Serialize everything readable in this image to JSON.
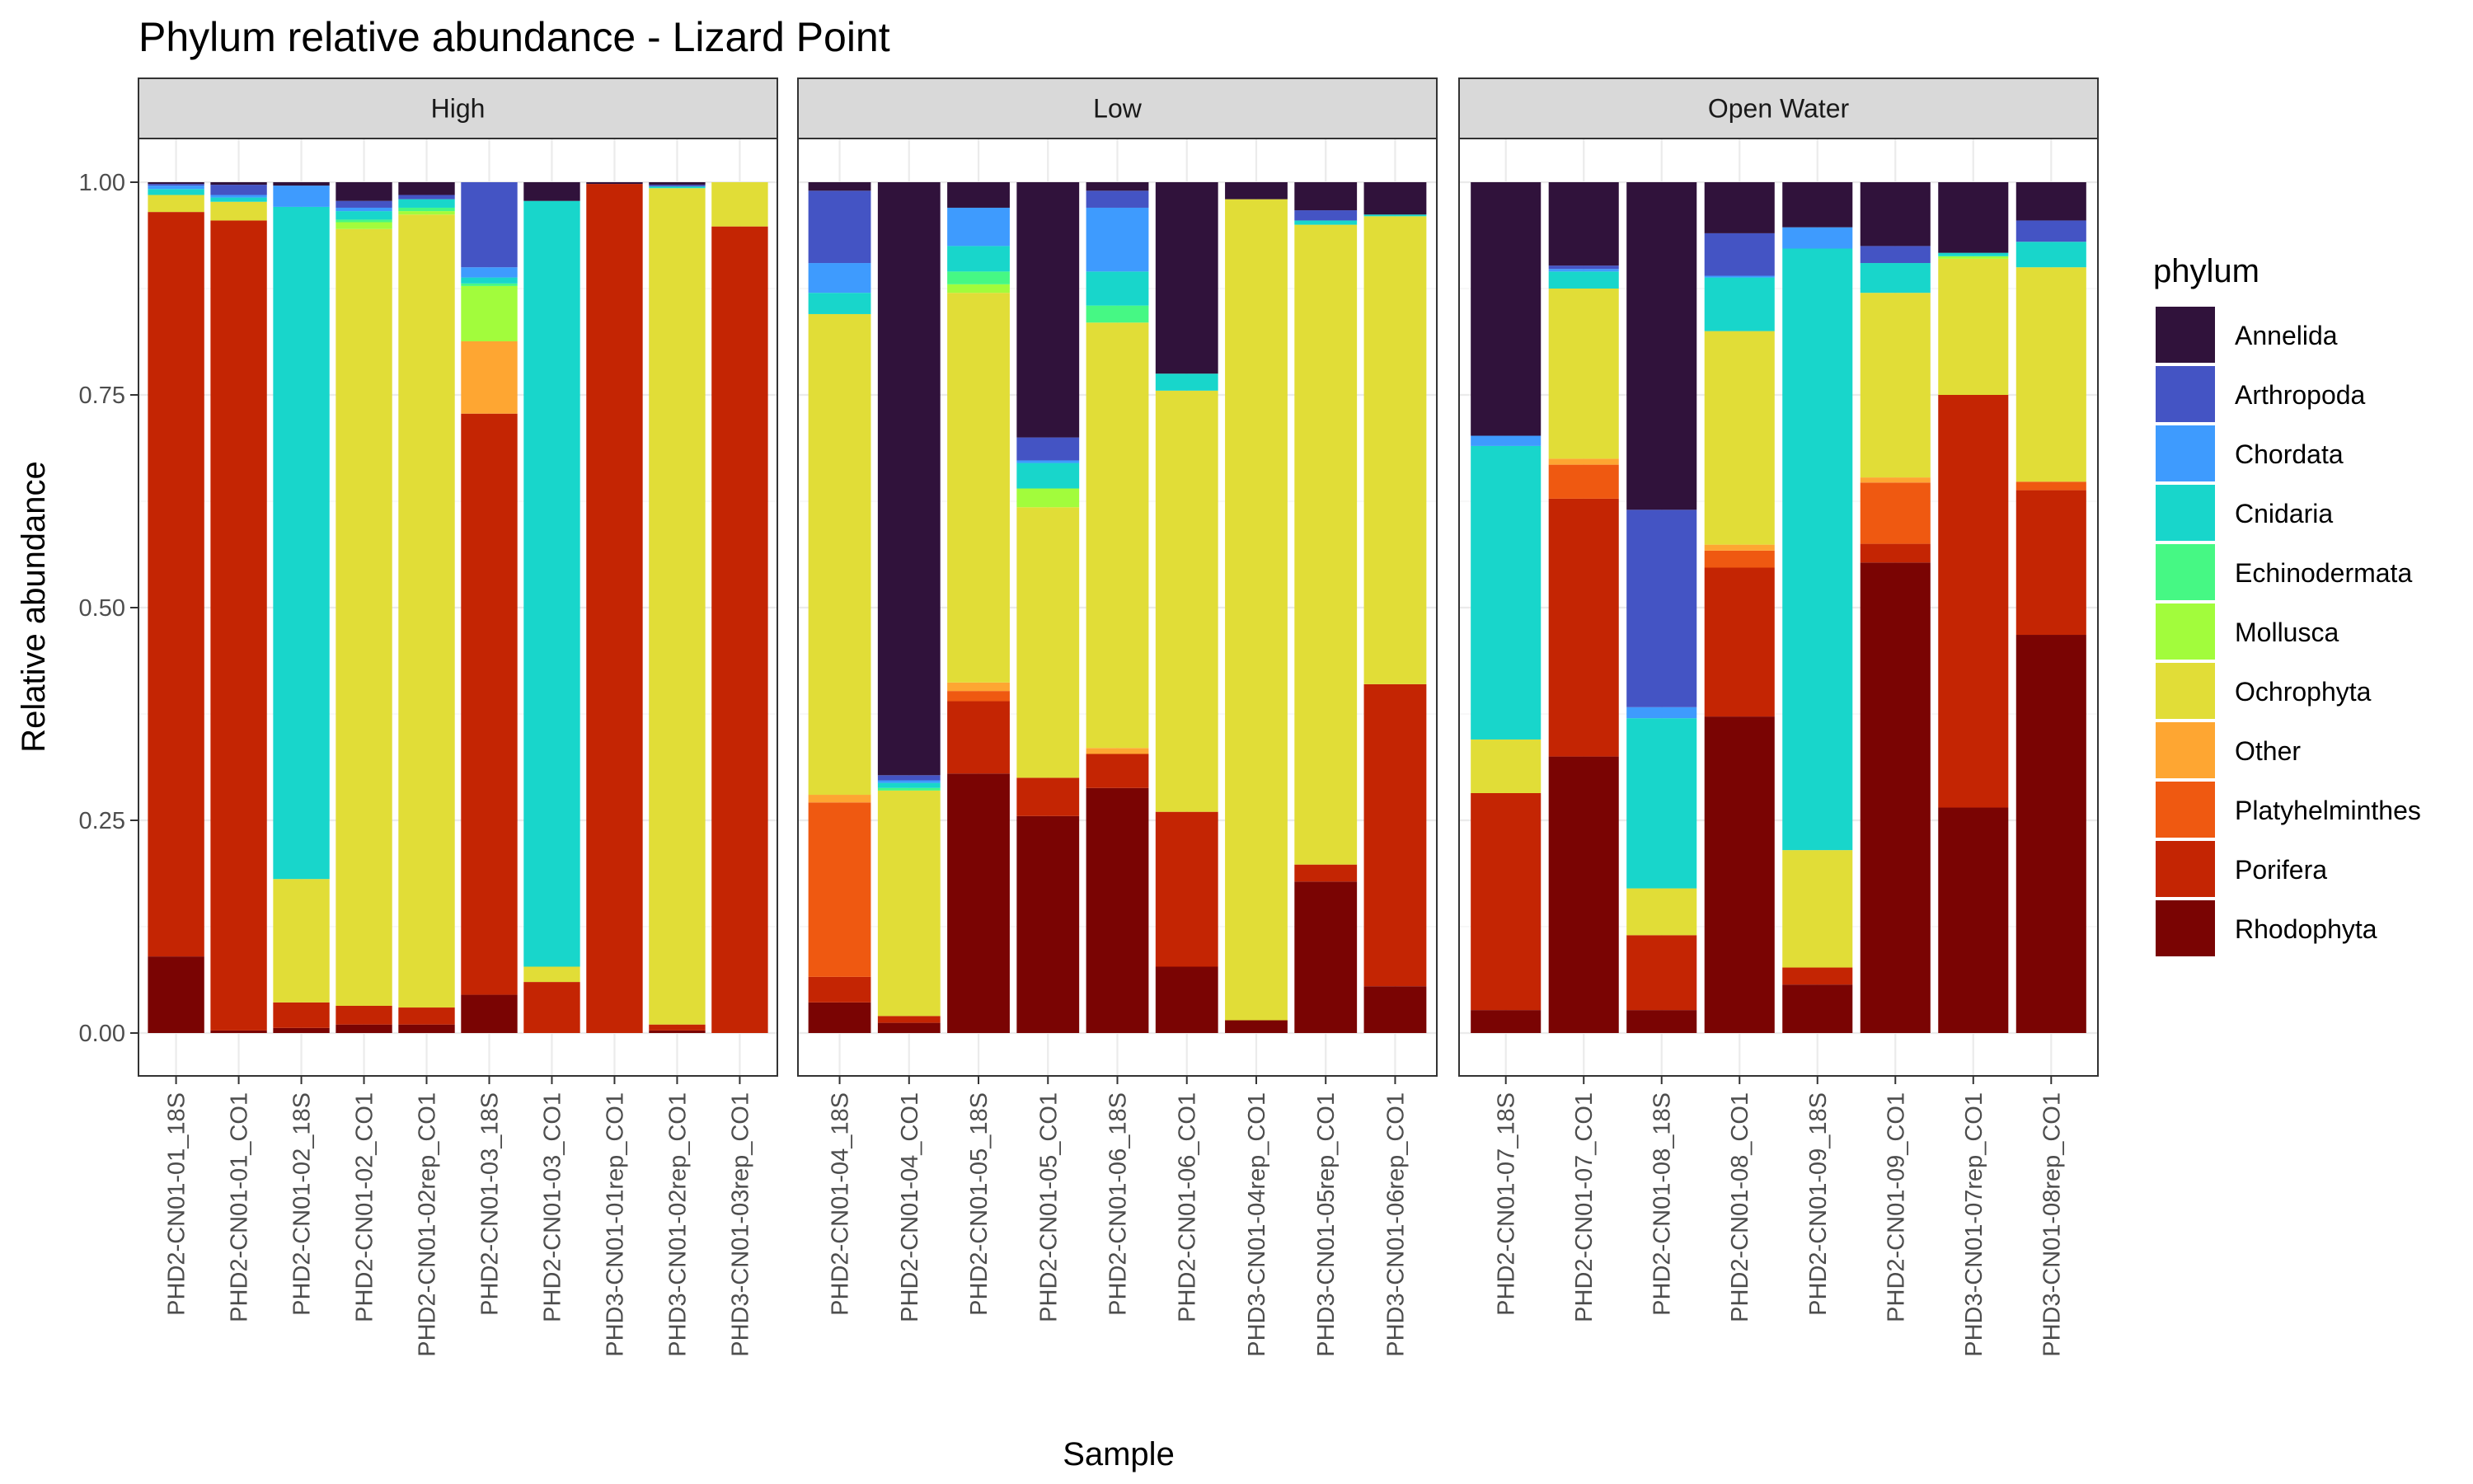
{
  "chart_data": {
    "type": "bar",
    "stacked": true,
    "title": "Phylum relative abundance - Lizard Point",
    "xlabel": "Sample",
    "ylabel": "Relative abundance",
    "ylim": [
      0,
      1
    ],
    "y_ticks": [
      "0.00",
      "0.25",
      "0.50",
      "0.75",
      "1.00"
    ],
    "grid": true,
    "legend": {
      "title": "phylum",
      "position": "right"
    },
    "stack_order_bottom_to_top": [
      "Rhodophyta",
      "Porifera",
      "Platyhelminthes",
      "Other",
      "Ochrophyta",
      "Mollusca",
      "Echinodermata",
      "Cnidaria",
      "Chordata",
      "Arthropoda",
      "Annelida"
    ],
    "series": [
      {
        "name": "Annelida",
        "color": "#30123b"
      },
      {
        "name": "Arthropoda",
        "color": "#4454c4"
      },
      {
        "name": "Chordata",
        "color": "#3e9bfe"
      },
      {
        "name": "Cnidaria",
        "color": "#18d6cb"
      },
      {
        "name": "Echinodermata",
        "color": "#46f884"
      },
      {
        "name": "Mollusca",
        "color": "#a2fc3c"
      },
      {
        "name": "Ochrophyta",
        "color": "#e1dd37"
      },
      {
        "name": "Other",
        "color": "#fea632"
      },
      {
        "name": "Platyhelminthes",
        "color": "#ef5911"
      },
      {
        "name": "Porifera",
        "color": "#c42503"
      },
      {
        "name": "Rhodophyta",
        "color": "#7a0403"
      }
    ],
    "facets": [
      {
        "name": "High",
        "samples": [
          {
            "name": "PHD2-CN01-01_18S",
            "values": {
              "Rhodophyta": 0.09,
              "Porifera": 0.875,
              "Ochrophyta": 0.02,
              "Cnidaria": 0.007,
              "Chordata": 0.004,
              "Arthropoda": 0.002,
              "Annelida": 0.002
            }
          },
          {
            "name": "PHD2-CN01-01_CO1",
            "values": {
              "Rhodophyta": 0.003,
              "Porifera": 0.952,
              "Ochrophyta": 0.022,
              "Cnidaria": 0.005,
              "Chordata": 0.003,
              "Arthropoda": 0.012,
              "Annelida": 0.003
            }
          },
          {
            "name": "PHD2-CN01-02_18S",
            "values": {
              "Rhodophyta": 0.006,
              "Porifera": 0.03,
              "Ochrophyta": 0.145,
              "Cnidaria": 0.79,
              "Chordata": 0.025,
              "Annelida": 0.004
            }
          },
          {
            "name": "PHD2-CN01-02_CO1",
            "values": {
              "Rhodophyta": 0.01,
              "Porifera": 0.022,
              "Ochrophyta": 0.913,
              "Mollusca": 0.008,
              "Echinodermata": 0.003,
              "Cnidaria": 0.01,
              "Chordata": 0.004,
              "Arthropoda": 0.008,
              "Annelida": 0.022
            }
          },
          {
            "name": "PHD2-CN01-02rep_CO1",
            "values": {
              "Rhodophyta": 0.01,
              "Porifera": 0.02,
              "Ochrophyta": 0.932,
              "Mollusca": 0.004,
              "Echinodermata": 0.004,
              "Cnidaria": 0.01,
              "Arthropoda": 0.005,
              "Annelida": 0.015
            }
          },
          {
            "name": "PHD2-CN01-03_18S",
            "values": {
              "Rhodophyta": 0.045,
              "Porifera": 0.683,
              "Other": 0.085,
              "Mollusca": 0.065,
              "Echinodermata": 0.003,
              "Cnidaria": 0.007,
              "Chordata": 0.012,
              "Arthropoda": 0.1
            }
          },
          {
            "name": "PHD2-CN01-03_CO1",
            "values": {
              "Porifera": 0.06,
              "Ochrophyta": 0.018,
              "Cnidaria": 0.9,
              "Annelida": 0.022
            }
          },
          {
            "name": "PHD3-CN01-01rep_CO1",
            "values": {
              "Porifera": 0.998,
              "Annelida": 0.002
            }
          },
          {
            "name": "PHD3-CN01-02rep_CO1",
            "values": {
              "Rhodophyta": 0.003,
              "Porifera": 0.007,
              "Ochrophyta": 0.983,
              "Cnidaria": 0.002,
              "Arthropoda": 0.002,
              "Annelida": 0.003
            }
          },
          {
            "name": "PHD3-CN01-03rep_CO1",
            "values": {
              "Porifera": 0.948,
              "Ochrophyta": 0.052
            }
          }
        ]
      },
      {
        "name": "Low",
        "samples": [
          {
            "name": "PHD2-CN01-04_18S",
            "values": {
              "Rhodophyta": 0.036,
              "Porifera": 0.03,
              "Platyhelminthes": 0.205,
              "Other": 0.009,
              "Ochrophyta": 0.565,
              "Cnidaria": 0.025,
              "Chordata": 0.035,
              "Arthropoda": 0.085,
              "Annelida": 0.01
            }
          },
          {
            "name": "PHD2-CN01-04_CO1",
            "values": {
              "Rhodophyta": 0.012,
              "Porifera": 0.008,
              "Ochrophyta": 0.265,
              "Echinodermata": 0.003,
              "Cnidaria": 0.006,
              "Chordata": 0.003,
              "Arthropoda": 0.006,
              "Annelida": 0.697
            }
          },
          {
            "name": "PHD2-CN01-05_18S",
            "values": {
              "Rhodophyta": 0.305,
              "Porifera": 0.085,
              "Platyhelminthes": 0.012,
              "Other": 0.01,
              "Ochrophyta": 0.458,
              "Mollusca": 0.01,
              "Echinodermata": 0.015,
              "Cnidaria": 0.03,
              "Chordata": 0.045,
              "Annelida": 0.03
            }
          },
          {
            "name": "PHD2-CN01-05_CO1",
            "values": {
              "Rhodophyta": 0.255,
              "Porifera": 0.045,
              "Ochrophyta": 0.318,
              "Mollusca": 0.022,
              "Cnidaria": 0.03,
              "Chordata": 0.003,
              "Arthropoda": 0.027,
              "Annelida": 0.3
            }
          },
          {
            "name": "PHD2-CN01-06_18S",
            "values": {
              "Rhodophyta": 0.288,
              "Porifera": 0.04,
              "Other": 0.007,
              "Ochrophyta": 0.5,
              "Echinodermata": 0.02,
              "Cnidaria": 0.04,
              "Chordata": 0.075,
              "Arthropoda": 0.02,
              "Annelida": 0.01
            }
          },
          {
            "name": "PHD2-CN01-06_CO1",
            "values": {
              "Rhodophyta": 0.078,
              "Porifera": 0.182,
              "Ochrophyta": 0.495,
              "Cnidaria": 0.02,
              "Annelida": 0.225
            }
          },
          {
            "name": "PHD3-CN01-04rep_CO1",
            "values": {
              "Rhodophyta": 0.015,
              "Ochrophyta": 0.965,
              "Annelida": 0.02
            }
          },
          {
            "name": "PHD3-CN01-05rep_CO1",
            "values": {
              "Rhodophyta": 0.178,
              "Porifera": 0.02,
              "Ochrophyta": 0.752,
              "Cnidaria": 0.005,
              "Arthropoda": 0.012,
              "Annelida": 0.033
            }
          },
          {
            "name": "PHD3-CN01-06rep_CO1",
            "values": {
              "Rhodophyta": 0.055,
              "Porifera": 0.355,
              "Ochrophyta": 0.55,
              "Cnidaria": 0.002,
              "Annelida": 0.038
            }
          }
        ]
      },
      {
        "name": "Open Water",
        "samples": [
          {
            "name": "PHD2-CN01-07_18S",
            "values": {
              "Rhodophyta": 0.027,
              "Porifera": 0.255,
              "Ochrophyta": 0.063,
              "Cnidaria": 0.345,
              "Chordata": 0.012,
              "Annelida": 0.298
            }
          },
          {
            "name": "PHD2-CN01-07_CO1",
            "values": {
              "Rhodophyta": 0.325,
              "Porifera": 0.303,
              "Platyhelminthes": 0.04,
              "Other": 0.007,
              "Ochrophyta": 0.2,
              "Cnidaria": 0.02,
              "Chordata": 0.003,
              "Arthropoda": 0.004,
              "Annelida": 0.098
            }
          },
          {
            "name": "PHD2-CN01-08_18S",
            "values": {
              "Rhodophyta": 0.027,
              "Porifera": 0.088,
              "Ochrophyta": 0.055,
              "Cnidaria": 0.2,
              "Chordata": 0.013,
              "Arthropoda": 0.232,
              "Annelida": 0.385
            }
          },
          {
            "name": "PHD2-CN01-08_CO1",
            "values": {
              "Rhodophyta": 0.372,
              "Porifera": 0.175,
              "Platyhelminthes": 0.02,
              "Other": 0.007,
              "Ochrophyta": 0.251,
              "Cnidaria": 0.063,
              "Chordata": 0.002,
              "Arthropoda": 0.05,
              "Annelida": 0.06
            }
          },
          {
            "name": "PHD2-CN01-09_18S",
            "values": {
              "Rhodophyta": 0.057,
              "Porifera": 0.02,
              "Ochrophyta": 0.138,
              "Cnidaria": 0.707,
              "Chordata": 0.025,
              "Annelida": 0.053
            }
          },
          {
            "name": "PHD2-CN01-09_CO1",
            "values": {
              "Rhodophyta": 0.553,
              "Porifera": 0.022,
              "Platyhelminthes": 0.072,
              "Other": 0.006,
              "Ochrophyta": 0.217,
              "Cnidaria": 0.035,
              "Arthropoda": 0.02,
              "Annelida": 0.075
            }
          },
          {
            "name": "PHD3-CN01-07rep_CO1",
            "values": {
              "Rhodophyta": 0.265,
              "Porifera": 0.485,
              "Ochrophyta": 0.16,
              "Mollusca": 0.003,
              "Cnidaria": 0.004,
              "Annelida": 0.083
            }
          },
          {
            "name": "PHD3-CN01-08rep_CO1",
            "values": {
              "Rhodophyta": 0.468,
              "Porifera": 0.17,
              "Platyhelminthes": 0.01,
              "Ochrophyta": 0.252,
              "Cnidaria": 0.03,
              "Arthropoda": 0.025,
              "Annelida": 0.045
            }
          }
        ]
      }
    ]
  }
}
